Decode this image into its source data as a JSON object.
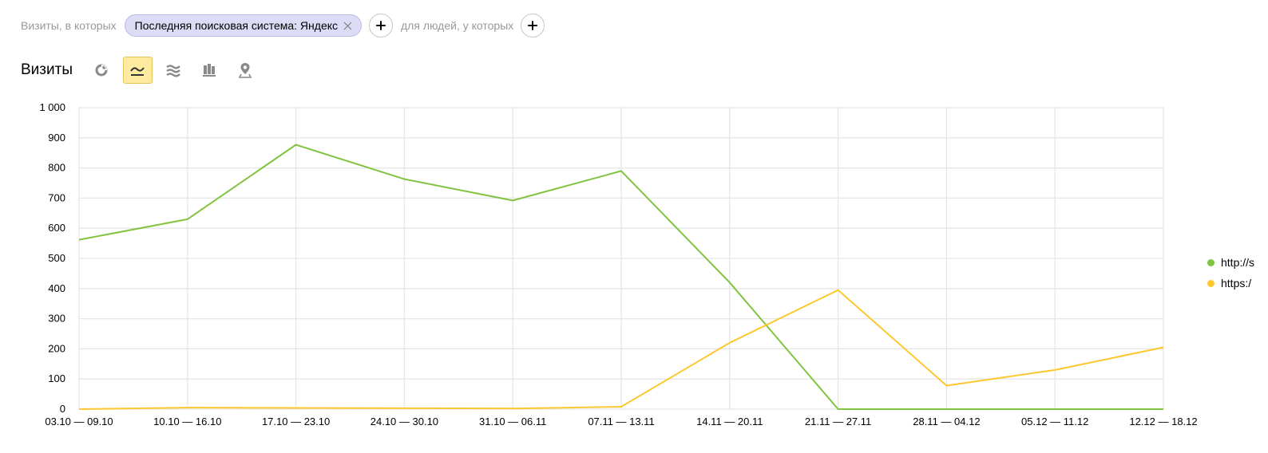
{
  "filter": {
    "prefix": "Визиты, в которых",
    "chip_label": "Последняя поисковая система: Яндекс",
    "middle": "для людей, у которых"
  },
  "header": {
    "title": "Визиты",
    "chart_types": [
      {
        "icon": "pie-chart-icon",
        "active": false
      },
      {
        "icon": "line-chart-icon",
        "active": true
      },
      {
        "icon": "area-chart-icon",
        "active": false
      },
      {
        "icon": "bar-chart-icon",
        "active": false
      },
      {
        "icon": "map-icon",
        "active": false
      }
    ]
  },
  "colors": {
    "series_green": "#82c341",
    "series_yellow": "#fdc82f",
    "grid": "#e6e6e6",
    "chip_bg": "#dcdcf7",
    "active_btn": "#ffeba0"
  },
  "chart_data": {
    "type": "line",
    "x": [
      "03.10 — 09.10",
      "10.10 — 16.10",
      "17.10 — 23.10",
      "24.10 — 30.10",
      "31.10 — 06.11",
      "07.11 — 13.11",
      "14.11 — 20.11",
      "21.11 — 27.11",
      "28.11 — 04.12",
      "05.12 — 11.12",
      "12.12 — 18.12"
    ],
    "ylim": [
      0,
      1000
    ],
    "yticks": [
      "0",
      "100",
      "200",
      "300",
      "400",
      "500",
      "600",
      "700",
      "800",
      "900",
      "1 000"
    ],
    "grid": true,
    "legend_position": "right",
    "series": [
      {
        "name": "http://s",
        "color": "#82c341",
        "values": [
          562,
          630,
          877,
          763,
          692,
          790,
          420,
          0,
          0,
          0,
          0
        ]
      },
      {
        "name": "https:/",
        "color": "#fdc82f",
        "values": [
          0,
          5,
          4,
          3,
          2,
          8,
          220,
          395,
          78,
          130,
          205
        ]
      }
    ]
  }
}
